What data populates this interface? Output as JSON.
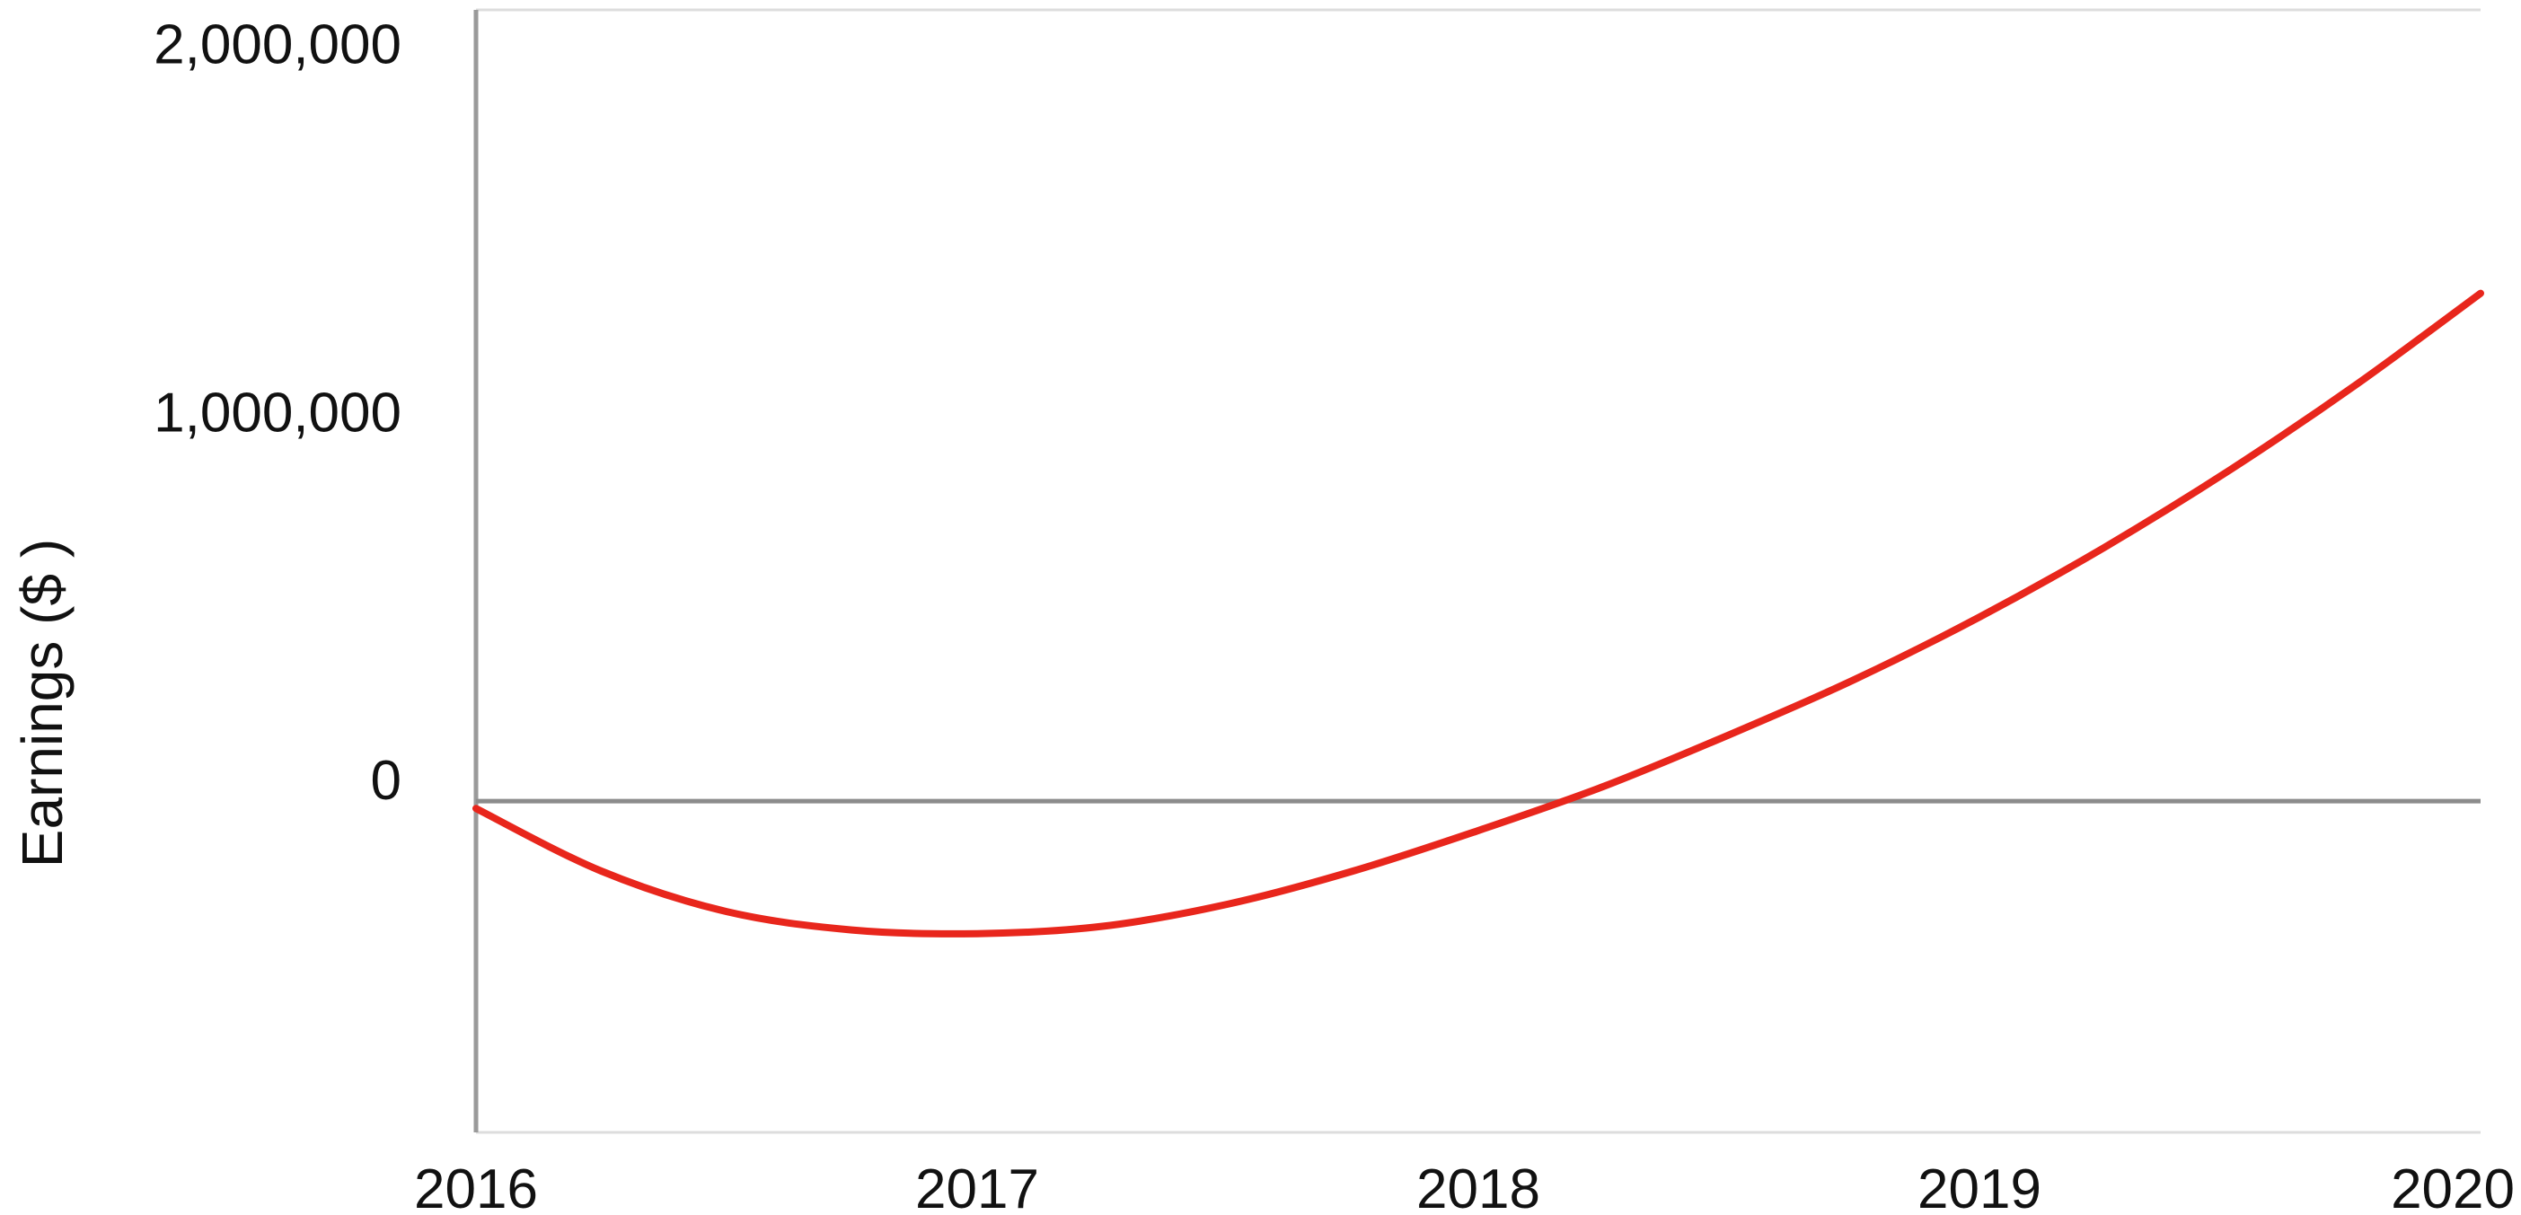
{
  "chart_data": {
    "type": "line",
    "title": "",
    "xlabel": "",
    "ylabel": "Earnings ($ )",
    "x": [
      2016,
      2016.25,
      2016.5,
      2016.75,
      2017,
      2017.25,
      2017.5,
      2017.75,
      2018,
      2018.25,
      2018.5,
      2018.75,
      2019,
      2019.25,
      2019.5,
      2019.75,
      2020
    ],
    "series": [
      {
        "values": [
          -20000,
          -190000,
          -300000,
          -350000,
          -360000,
          -340000,
          -280000,
          -190000,
          -80000,
          40000,
          180000,
          330000,
          500000,
          690000,
          900000,
          1130000,
          1380000
        ],
        "color": "#e8261c"
      }
    ],
    "xlim": [
      2016,
      2020
    ],
    "ylim": [
      -900000,
      2150000
    ],
    "x_ticks": [
      "2016",
      "2017",
      "2018",
      "2019",
      "2020"
    ],
    "y_ticks": [
      "0",
      "1,000,000",
      "2,000,000"
    ],
    "x_tick_values": [
      2016,
      2017,
      2018,
      2019,
      2020
    ],
    "y_tick_values": [
      0,
      1000000,
      2000000
    ],
    "grid": false,
    "legend": "none"
  }
}
